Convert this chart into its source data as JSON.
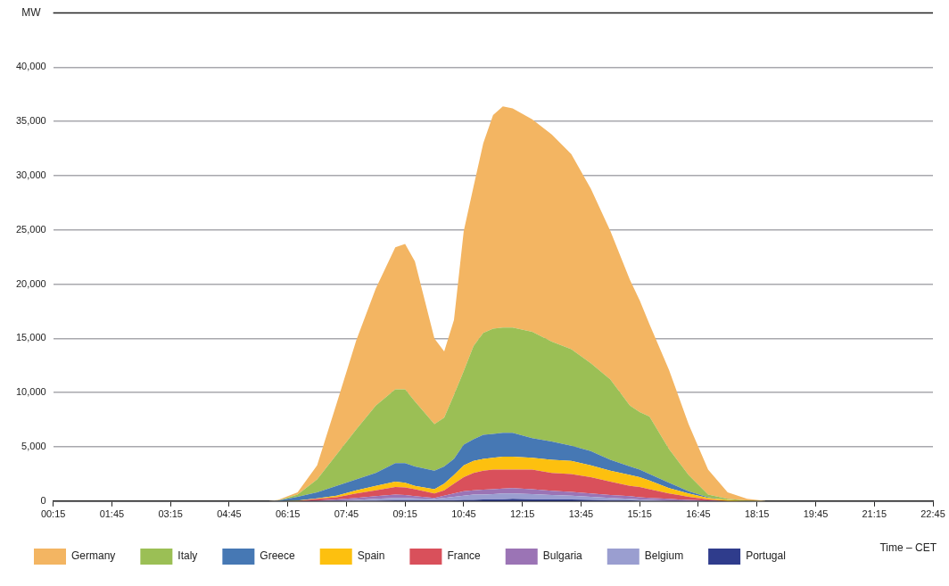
{
  "chart_data": {
    "type": "area",
    "stacked": true,
    "ylabel": "MW",
    "xlabel": "Time – CET",
    "legend": "bottom",
    "grid": "y",
    "marker": "none",
    "x": [
      0.25,
      5.75,
      6,
      6.5,
      7,
      7.5,
      8,
      8.5,
      9,
      9.25,
      9.5,
      10,
      10.25,
      10.5,
      10.75,
      11,
      11.25,
      11.5,
      11.75,
      12,
      12.5,
      13,
      13.5,
      14,
      14.5,
      15,
      15.25,
      15.5,
      16,
      16.5,
      17,
      17.5,
      18,
      18.5,
      22.75
    ],
    "xlim": [
      0.25,
      22.75
    ],
    "xticks": [
      {
        "value": 0.25,
        "label": "00:15"
      },
      {
        "value": 1.75,
        "label": "01:45"
      },
      {
        "value": 3.25,
        "label": "03:15"
      },
      {
        "value": 4.75,
        "label": "04:45"
      },
      {
        "value": 6.25,
        "label": "06:15"
      },
      {
        "value": 7.75,
        "label": "07:45"
      },
      {
        "value": 9.25,
        "label": "09:15"
      },
      {
        "value": 10.75,
        "label": "10:45"
      },
      {
        "value": 12.25,
        "label": "12:15"
      },
      {
        "value": 13.75,
        "label": "13:45"
      },
      {
        "value": 15.25,
        "label": "15:15"
      },
      {
        "value": 16.75,
        "label": "16:45"
      },
      {
        "value": 18.25,
        "label": "18:15"
      },
      {
        "value": 19.75,
        "label": "19:45"
      },
      {
        "value": 21.25,
        "label": "21:15"
      },
      {
        "value": 22.75,
        "label": "22:45"
      }
    ],
    "ylim": [
      0,
      45000
    ],
    "yticks": [
      0,
      {
        "value": 5000,
        "label": "5,000"
      },
      {
        "value": 10000,
        "label": "10,000"
      },
      {
        "value": 15000,
        "label": "15,000"
      },
      {
        "value": 20000,
        "label": "20,000"
      },
      {
        "value": 25000,
        "label": "25,000"
      },
      {
        "value": 30000,
        "label": "30,000"
      },
      {
        "value": 35000,
        "label": "35,000"
      },
      {
        "value": 40000,
        "label": "40,000"
      }
    ],
    "series": [
      {
        "name": "Portugal",
        "color": "#2f3c8c",
        "values": [
          0,
          0,
          0,
          0,
          0,
          0,
          0,
          0,
          50,
          50,
          50,
          50,
          50,
          50,
          100,
          100,
          150,
          150,
          150,
          200,
          150,
          150,
          150,
          100,
          50,
          50,
          0,
          0,
          0,
          0,
          0,
          0,
          0,
          0,
          0
        ]
      },
      {
        "name": "Belgium",
        "color": "#9a9ed0",
        "values": [
          0,
          0,
          0,
          0,
          0,
          50,
          100,
          200,
          250,
          250,
          200,
          150,
          250,
          350,
          400,
          500,
          450,
          500,
          550,
          500,
          500,
          400,
          350,
          300,
          250,
          150,
          150,
          100,
          50,
          0,
          0,
          0,
          0,
          0,
          0
        ]
      },
      {
        "name": "Bulgaria",
        "color": "#9b74b5",
        "values": [
          0,
          0,
          0,
          0,
          50,
          100,
          200,
          250,
          300,
          250,
          200,
          100,
          200,
          300,
          400,
          400,
          450,
          450,
          450,
          500,
          450,
          400,
          350,
          300,
          250,
          250,
          200,
          200,
          150,
          100,
          50,
          0,
          0,
          0,
          0
        ]
      },
      {
        "name": "France",
        "color": "#d9505b",
        "values": [
          0,
          0,
          0,
          0,
          150,
          200,
          400,
          550,
          700,
          700,
          650,
          400,
          500,
          900,
          1300,
          1600,
          1750,
          1800,
          1750,
          1700,
          1800,
          1650,
          1650,
          1500,
          1250,
          950,
          950,
          800,
          500,
          300,
          100,
          0,
          0,
          0,
          0
        ]
      },
      {
        "name": "Spain",
        "color": "#fdc00f",
        "values": [
          0,
          0,
          0,
          50,
          50,
          150,
          300,
          400,
          500,
          450,
          300,
          400,
          600,
          800,
          1100,
          1100,
          1100,
          1100,
          1200,
          1200,
          1100,
          1200,
          1200,
          1100,
          1000,
          1000,
          900,
          800,
          500,
          300,
          150,
          100,
          0,
          0,
          0
        ]
      },
      {
        "name": "Greece",
        "color": "#4678b4",
        "values": [
          0,
          0,
          50,
          350,
          550,
          900,
          1000,
          1200,
          1700,
          1800,
          1800,
          1700,
          1600,
          1500,
          1900,
          2000,
          2200,
          2200,
          2200,
          2200,
          1800,
          1700,
          1400,
          1300,
          1000,
          800,
          700,
          600,
          500,
          200,
          50,
          0,
          0,
          0,
          0
        ]
      },
      {
        "name": "Italy",
        "color": "#9bbf55",
        "values": [
          0,
          0,
          0,
          200,
          1200,
          2900,
          4600,
          6200,
          6800,
          6800,
          6000,
          4300,
          4500,
          5900,
          6800,
          8600,
          9400,
          9700,
          9700,
          9700,
          9800,
          9200,
          8900,
          8100,
          7400,
          5600,
          5300,
          5300,
          3100,
          1500,
          250,
          100,
          50,
          0,
          0
        ]
      },
      {
        "name": "Germany",
        "color": "#f3b562",
        "values": [
          0,
          0,
          50,
          200,
          1300,
          4700,
          8200,
          10800,
          13100,
          13400,
          12900,
          7900,
          6100,
          6900,
          12900,
          14700,
          17500,
          19700,
          20400,
          20200,
          19600,
          19100,
          18000,
          16100,
          13700,
          11600,
          10300,
          8500,
          7300,
          4700,
          2300,
          600,
          150,
          0,
          0
        ]
      }
    ]
  }
}
